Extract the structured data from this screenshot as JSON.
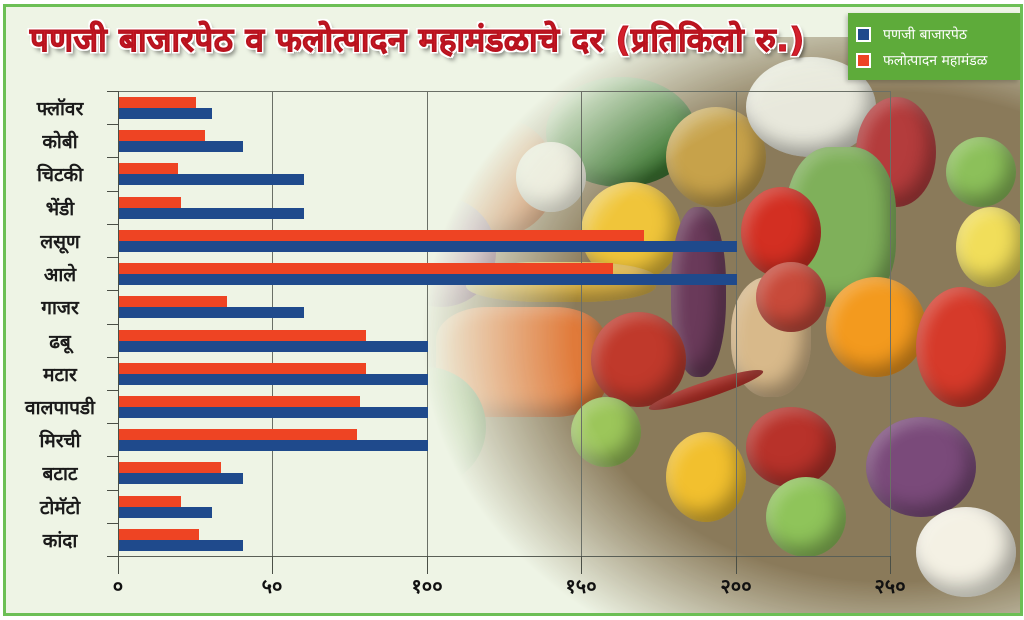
{
  "title": "पणजी बाजारपेठ व फलोत्पादन महामंडळाचे दर (प्रतिकिलो रु.)",
  "legend": {
    "items": [
      {
        "label": "पणजी बाजारपेठ",
        "color": "#1f4a8c"
      },
      {
        "label": "फलोत्पादन महामंडळ",
        "color": "#ee4423"
      }
    ]
  },
  "axis": {
    "x_ticks": [
      "०",
      "५०",
      "१००",
      "१५०",
      "२००",
      "२५०"
    ]
  },
  "colors": {
    "panaji_market": "#1f4a8c",
    "horticulture_corp": "#ee4423",
    "border": "#6cbf55",
    "background": "#eef4e5",
    "title": "#d3202c",
    "legend_bg": "#5eab3a"
  },
  "chart_data": {
    "type": "bar",
    "orientation": "horizontal",
    "title": "पणजी बाजारपेठ व फलोत्पादन महामंडळाचे दर (प्रतिकिलो रु.)",
    "xlabel": "",
    "ylabel": "",
    "xlim": [
      0,
      250
    ],
    "x_ticks": [
      0,
      50,
      100,
      150,
      200,
      250
    ],
    "x_tick_labels": [
      "०",
      "५०",
      "१००",
      "१५०",
      "२००",
      "२५०"
    ],
    "grid": "vertical",
    "legend_position": "top-right",
    "categories": [
      "फ्लॉवर",
      "कोबी",
      "चिटकी",
      "भेंडी",
      "लसूण",
      "आले",
      "गाजर",
      "ढबू",
      "मटार",
      "वालपापडी",
      "मिरची",
      "बटाट",
      "टोमॅटो",
      "कांदा"
    ],
    "series": [
      {
        "name": "पणजी बाजारपेठ",
        "color": "#1f4a8c",
        "values": [
          30,
          40,
          60,
          60,
          200,
          200,
          60,
          100,
          100,
          100,
          100,
          40,
          30,
          40
        ]
      },
      {
        "name": "फलोत्पादन महामंडळ",
        "color": "#ee4423",
        "values": [
          25,
          28,
          19,
          20,
          170,
          160,
          35,
          80,
          80,
          78,
          77,
          33,
          20,
          26
        ]
      }
    ]
  }
}
